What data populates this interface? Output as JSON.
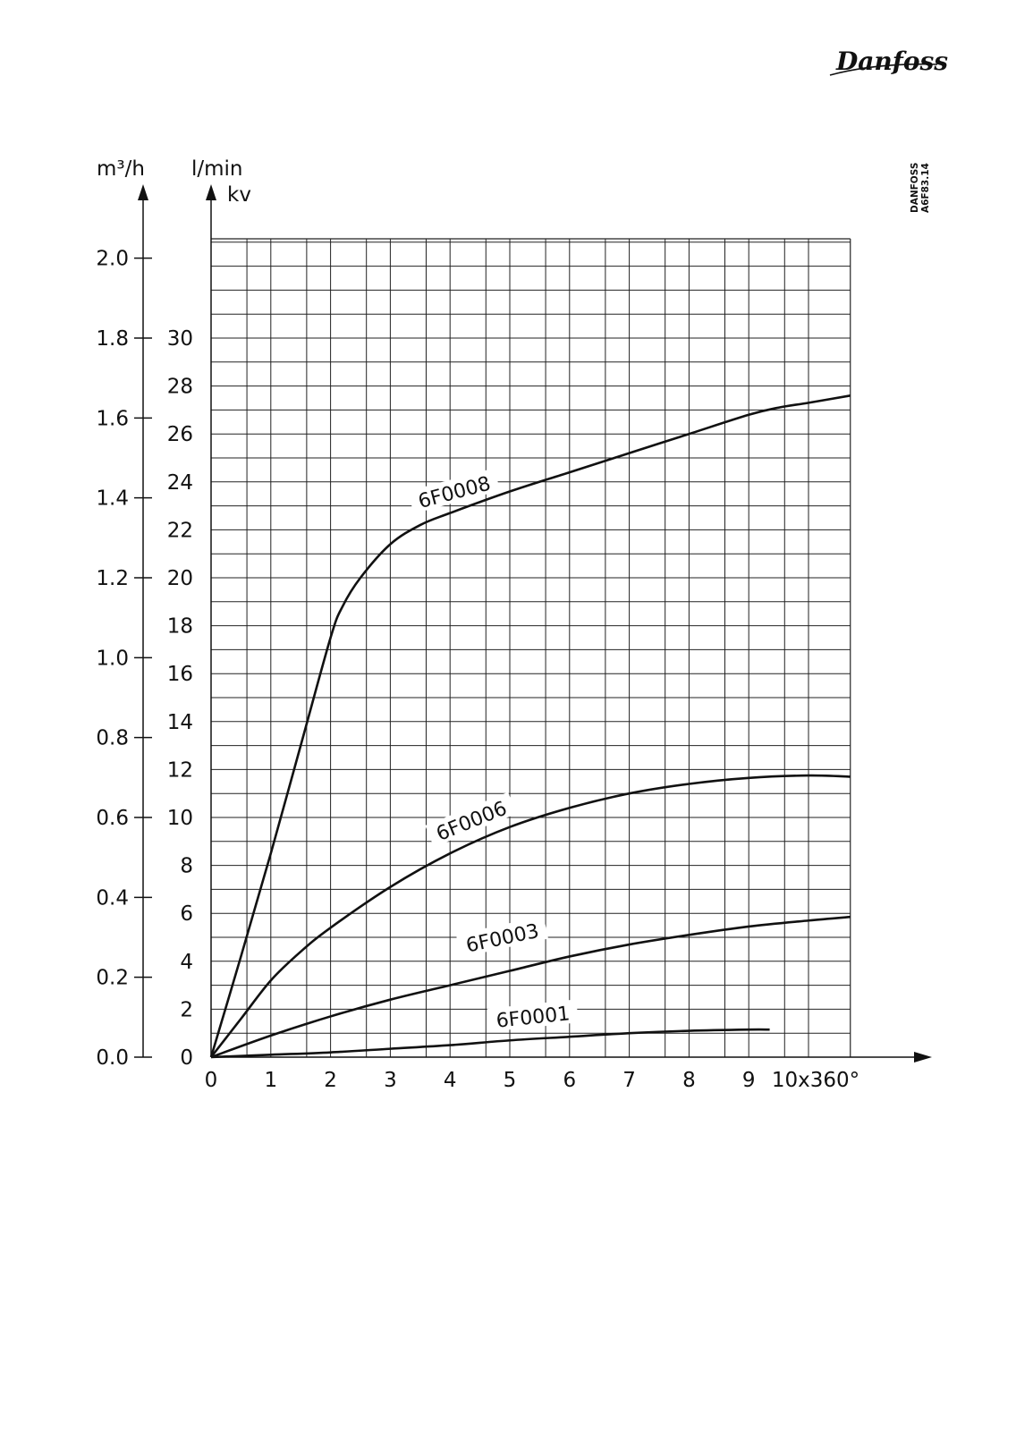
{
  "brand": {
    "logo_text": "Danfoss"
  },
  "document_ref": {
    "line1": "DANFOSS",
    "line2": "A6F83.14"
  },
  "chart_data": {
    "type": "line",
    "title": "",
    "xlabel": "",
    "x_unit_label": "10x360°",
    "xlim": [
      0,
      10.7
    ],
    "x_ticks": [
      0,
      1,
      2,
      3,
      4,
      5,
      6,
      7,
      8,
      9
    ],
    "x_tick_labels": [
      "0",
      "1",
      "2",
      "3",
      "4",
      "5",
      "6",
      "7",
      "8",
      "9"
    ],
    "y_axes": {
      "m3h": {
        "label": "m³/h",
        "ylim": [
          0,
          2.0
        ],
        "ticks": [
          0.0,
          0.2,
          0.4,
          0.6,
          0.8,
          1.0,
          1.2,
          1.4,
          1.6,
          1.8,
          2.0
        ],
        "tick_labels": [
          "0.0",
          "0.2",
          "0.4",
          "0.6",
          "0.8",
          "1.0",
          "1.2",
          "1.4",
          "1.6",
          "1.8",
          "2.0"
        ]
      },
      "lmin": {
        "label": "l/min",
        "secondary_label": "kv",
        "ylim": [
          0,
          34
        ],
        "ticks": [
          0,
          2,
          4,
          6,
          8,
          10,
          12,
          14,
          16,
          18,
          20,
          22,
          24,
          26,
          28,
          30
        ],
        "tick_labels": [
          "0",
          "2",
          "4",
          "6",
          "8",
          "10",
          "12",
          "14",
          "16",
          "18",
          "20",
          "22",
          "24",
          "26",
          "28",
          "30"
        ]
      }
    },
    "grid": true,
    "series": [
      {
        "name": "6F0008",
        "x": [
          0,
          0.5,
          1.0,
          1.5,
          2.0,
          2.2,
          2.5,
          3.0,
          3.5,
          4.0,
          5.0,
          6.0,
          7.0,
          8.0,
          9.0,
          9.5,
          10.0,
          10.7
        ],
        "y": [
          0,
          4.2,
          8.5,
          13.0,
          17.5,
          18.8,
          20.0,
          21.4,
          22.2,
          22.7,
          23.6,
          24.4,
          25.2,
          26.0,
          26.8,
          27.1,
          27.3,
          27.6
        ],
        "label_at": [
          4.1,
          23.3
        ],
        "label_angle": -15
      },
      {
        "name": "6F0006",
        "x": [
          0,
          0.5,
          1.0,
          1.5,
          2.0,
          3.0,
          4.0,
          5.0,
          6.0,
          7.0,
          8.0,
          9.0,
          10.0,
          10.7
        ],
        "y": [
          0,
          1.6,
          3.2,
          4.4,
          5.4,
          7.1,
          8.5,
          9.6,
          10.4,
          11.0,
          11.4,
          11.65,
          11.75,
          11.7
        ],
        "label_at": [
          4.4,
          9.6
        ],
        "label_angle": -22
      },
      {
        "name": "6F0003",
        "x": [
          0,
          1.0,
          2.0,
          3.0,
          4.0,
          5.0,
          6.0,
          7.0,
          8.0,
          9.0,
          10.0,
          10.7
        ],
        "y": [
          0,
          0.9,
          1.7,
          2.4,
          3.0,
          3.6,
          4.2,
          4.7,
          5.1,
          5.45,
          5.7,
          5.85
        ],
        "label_at": [
          4.9,
          4.7
        ],
        "label_angle": -12
      },
      {
        "name": "6F0001",
        "x": [
          0,
          1.0,
          2.0,
          3.0,
          4.0,
          5.0,
          6.0,
          7.0,
          8.0,
          9.0,
          9.35
        ],
        "y": [
          0,
          0.1,
          0.2,
          0.35,
          0.5,
          0.7,
          0.85,
          1.0,
          1.1,
          1.15,
          1.15
        ],
        "label_at": [
          5.4,
          1.4
        ],
        "label_angle": -6
      }
    ]
  }
}
